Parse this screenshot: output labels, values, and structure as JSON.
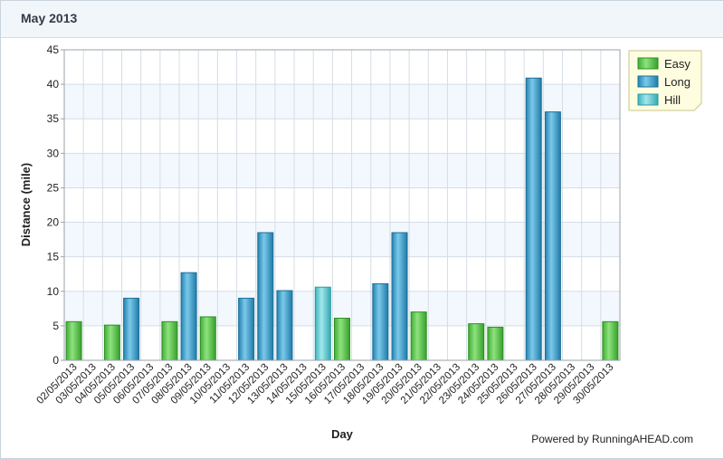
{
  "panel": {
    "title": "May 2013"
  },
  "footer": {
    "powered_by": "Powered by RunningAHEAD.com"
  },
  "colors": {
    "Easy": "#5cc94f",
    "Long": "#3aa3cf",
    "Hill": "#5ecfd6"
  },
  "chart_data": {
    "type": "bar",
    "xlabel": "Day",
    "ylabel": "Distance (mile)",
    "ylim": [
      0,
      45
    ],
    "yticks": [
      0,
      5,
      10,
      15,
      20,
      25,
      30,
      35,
      40,
      45
    ],
    "grid": true,
    "legend": "top-right",
    "categories": [
      "02/05/2013",
      "03/05/2013",
      "04/05/2013",
      "05/05/2013",
      "06/05/2013",
      "07/05/2013",
      "08/05/2013",
      "09/05/2013",
      "10/05/2013",
      "11/05/2013",
      "12/05/2013",
      "13/05/2013",
      "14/05/2013",
      "15/05/2013",
      "16/05/2013",
      "17/05/2013",
      "18/05/2013",
      "19/05/2013",
      "20/05/2013",
      "21/05/2013",
      "22/05/2013",
      "23/05/2013",
      "24/05/2013",
      "25/05/2013",
      "26/05/2013",
      "27/05/2013",
      "28/05/2013",
      "29/05/2013",
      "30/05/2013"
    ],
    "series": [
      {
        "name": "Easy",
        "values": [
          5.6,
          null,
          5.1,
          null,
          null,
          5.6,
          null,
          6.3,
          null,
          null,
          null,
          null,
          null,
          null,
          6.1,
          null,
          null,
          null,
          7.0,
          null,
          null,
          5.3,
          4.8,
          null,
          null,
          null,
          null,
          null,
          5.6
        ]
      },
      {
        "name": "Long",
        "values": [
          null,
          null,
          null,
          9.0,
          null,
          null,
          12.7,
          null,
          null,
          9.0,
          18.5,
          10.1,
          null,
          null,
          null,
          null,
          11.1,
          18.5,
          null,
          null,
          null,
          null,
          null,
          null,
          40.9,
          36.0,
          null,
          null,
          null
        ]
      },
      {
        "name": "Hill",
        "values": [
          null,
          null,
          null,
          null,
          null,
          null,
          null,
          null,
          null,
          null,
          null,
          null,
          null,
          10.6,
          null,
          null,
          null,
          null,
          null,
          null,
          null,
          null,
          null,
          null,
          null,
          null,
          null,
          null,
          null
        ]
      }
    ]
  }
}
